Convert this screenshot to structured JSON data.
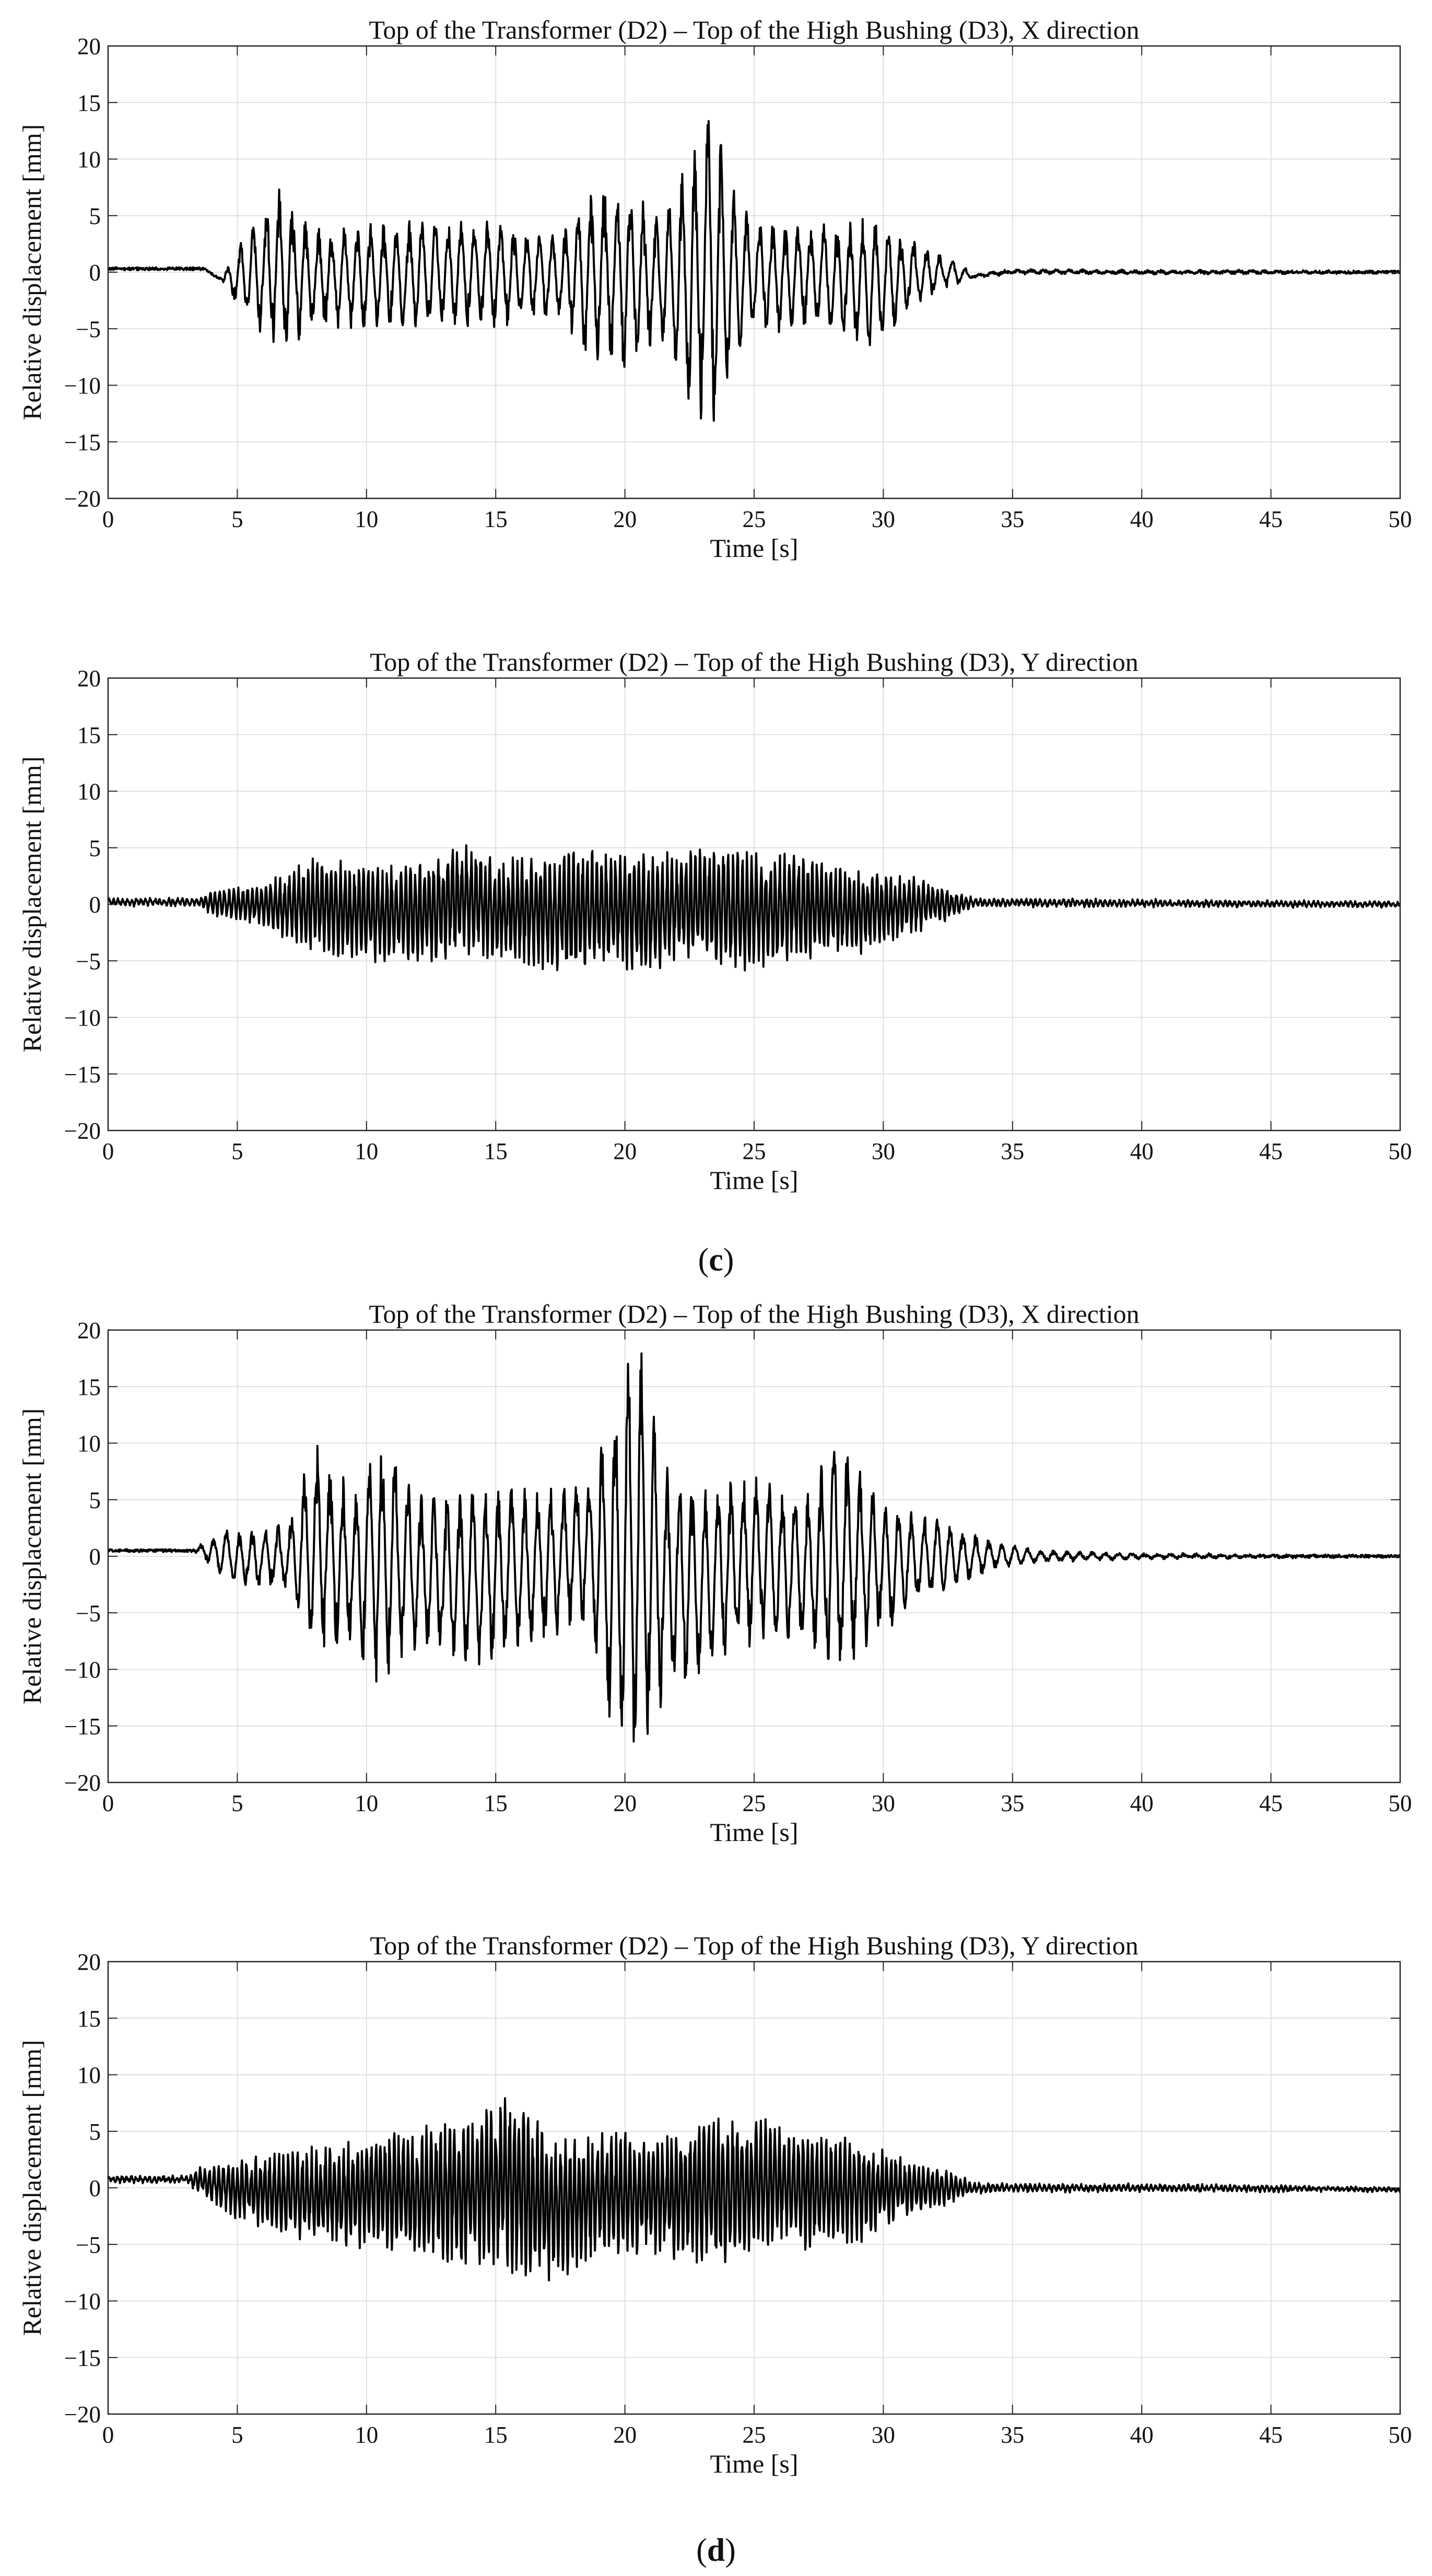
{
  "panel_labels": [
    "(c)",
    "(d)"
  ],
  "chart_data": [
    {
      "type": "line",
      "title": "Top of the Transformer (D2) – Top of the High Bushing (D3), X direction",
      "xlabel": "Time [s]",
      "ylabel": "Relative displacement [mm]",
      "xlim": [
        0,
        50
      ],
      "ylim": [
        -20,
        20
      ],
      "xticks": [
        0,
        5,
        10,
        15,
        20,
        25,
        30,
        35,
        40,
        45,
        50
      ],
      "yticks": [
        -20,
        -15,
        -10,
        -5,
        0,
        5,
        10,
        15,
        20
      ],
      "grid": true,
      "line_color": "#000000",
      "series": [
        {
          "x": [
            0,
            3.7,
            4.4,
            5.0,
            6.7,
            8.0,
            10.0,
            12.0,
            15.0,
            17.5,
            18.5,
            20.0,
            21.3,
            22.5,
            23.4,
            24.3,
            25.0,
            26.5,
            28.0,
            29.5,
            31.5,
            32.5,
            33.5,
            35.0,
            40.0,
            45.0,
            50.0
          ],
          "y": [
            0.3,
            0.3,
            -0.7,
            2.6,
            7.5,
            4.0,
            4.3,
            4.6,
            4.8,
            3.5,
            7.3,
            8.0,
            5.0,
            10.2,
            15.2,
            6.8,
            5.0,
            4.6,
            4.6,
            5.0,
            2.5,
            1.4,
            -0.2,
            0.2,
            0.1,
            0.1,
            0.0
          ],
          "envelope_low": [
            0.3,
            0.3,
            -0.7,
            -3.5,
            -7.5,
            -5.0,
            -5.0,
            -5.0,
            -5.0,
            -4.0,
            -7.8,
            -8.8,
            -6.0,
            -12.0,
            -15.4,
            -7.5,
            -6.0,
            -5.0,
            -5.5,
            -7.0,
            -2.8,
            -1.4,
            -0.5,
            -0.1,
            -0.1,
            -0.1,
            0.0
          ],
          "period": 0.5
        }
      ]
    },
    {
      "type": "line",
      "title": "Top of the Transformer (D2) – Top of the High Bushing (D3), Y direction",
      "xlabel": "Time [s]",
      "ylabel": "Relative displacement [mm]",
      "xlim": [
        0,
        50
      ],
      "ylim": [
        -20,
        20
      ],
      "xticks": [
        0,
        5,
        10,
        15,
        20,
        25,
        30,
        35,
        40,
        45,
        50
      ],
      "yticks": [
        -20,
        -15,
        -10,
        -5,
        0,
        5,
        10,
        15,
        20
      ],
      "grid": true,
      "line_color": "#000000",
      "series": [
        {
          "x": [
            0,
            3.5,
            4.2,
            5.0,
            6.0,
            8.0,
            10.0,
            12.0,
            13.8,
            15.0,
            17.5,
            19.0,
            21.0,
            22.0,
            25.0,
            27.0,
            29.0,
            31.0,
            32.5,
            33.5,
            35.0,
            40.0,
            45.0,
            50.0
          ],
          "y": [
            0.5,
            0.5,
            1.5,
            1.5,
            1.8,
            4.3,
            3.5,
            4.0,
            5.8,
            4.0,
            4.8,
            5.0,
            4.5,
            5.3,
            4.8,
            4.5,
            3.2,
            2.6,
            1.5,
            0.5,
            0.5,
            0.4,
            0.3,
            0.2
          ],
          "envelope_low": [
            -0.1,
            -0.1,
            -1.2,
            -1.5,
            -2.0,
            -4.5,
            -5.2,
            -5.3,
            -4.8,
            -5.0,
            -6.3,
            -5.5,
            -6.4,
            -5.0,
            -6.0,
            -5.0,
            -4.5,
            -2.8,
            -1.5,
            -0.2,
            -0.2,
            -0.2,
            -0.2,
            -0.2
          ],
          "period": 0.18
        }
      ]
    },
    {
      "type": "line",
      "title": "Top of the Transformer (D2) – Top of the High Bushing (D3), X direction",
      "xlabel": "Time [s]",
      "ylabel": "Relative displacement [mm]",
      "xlim": [
        0,
        50
      ],
      "ylim": [
        -20,
        20
      ],
      "xticks": [
        0,
        5,
        10,
        15,
        20,
        25,
        30,
        35,
        40,
        45,
        50
      ],
      "yticks": [
        -20,
        -15,
        -10,
        -5,
        0,
        5,
        10,
        15,
        20
      ],
      "grid": true,
      "line_color": "#000000",
      "series": [
        {
          "x": [
            0,
            3.3,
            4.5,
            5.0,
            7.0,
            8.0,
            9.5,
            10.3,
            12.0,
            14.0,
            16.5,
            18.5,
            19.5,
            20.5,
            21.5,
            23.0,
            25.0,
            27.0,
            28.0,
            30.0,
            32.0,
            34.0,
            36.0,
            40.0,
            45.0,
            50.0
          ],
          "y": [
            0.5,
            0.5,
            2.5,
            2.2,
            3.0,
            10.5,
            6.0,
            12.0,
            6.0,
            6.0,
            6.0,
            7.5,
            14.0,
            19.5,
            9.0,
            6.0,
            7.5,
            5.2,
            11.2,
            5.0,
            3.5,
            1.5,
            0.5,
            0.2,
            0.1,
            0.0
          ],
          "envelope_low": [
            0.5,
            0.5,
            -2.0,
            -2.8,
            -3.0,
            -9.0,
            -8.0,
            -12.0,
            -8.0,
            -10.5,
            -8.0,
            -6.0,
            -17.0,
            -19.5,
            -13.0,
            -10.5,
            -8.0,
            -8.0,
            -11.5,
            -7.0,
            -3.5,
            -1.5,
            -0.5,
            -0.2,
            -0.1,
            0.0
          ],
          "period": 0.5
        }
      ]
    },
    {
      "type": "line",
      "title": "Top of the Transformer (D2) – Top of the High Bushing (D3), Y direction",
      "xlabel": "Time [s]",
      "ylabel": "Relative displacement [mm]",
      "xlim": [
        0,
        50
      ],
      "ylim": [
        -20,
        20
      ],
      "xticks": [
        0,
        5,
        10,
        15,
        20,
        25,
        30,
        35,
        40,
        45,
        50
      ],
      "yticks": [
        -20,
        -15,
        -10,
        -5,
        0,
        5,
        10,
        15,
        20
      ],
      "grid": true,
      "line_color": "#000000",
      "series": [
        {
          "x": [
            0,
            3.0,
            3.5,
            5.0,
            7.0,
            9.0,
            10.5,
            12.5,
            15.5,
            17.0,
            19.0,
            21.0,
            23.5,
            25.5,
            27.0,
            29.0,
            31.0,
            32.5,
            33.5,
            35.0,
            40.0,
            45.0,
            50.0
          ],
          "y": [
            1.0,
            1.0,
            1.8,
            2.5,
            3.5,
            4.0,
            5.5,
            5.5,
            8.7,
            5.0,
            5.3,
            4.5,
            6.5,
            6.5,
            5.0,
            4.5,
            2.5,
            1.5,
            0.5,
            0.3,
            0.3,
            0.2,
            0.0
          ],
          "envelope_low": [
            0.5,
            0.5,
            -0.5,
            -2.8,
            -4.5,
            -5.5,
            -5.5,
            -6.5,
            -7.8,
            -8.5,
            -6.5,
            -6.0,
            -7.5,
            -5.5,
            -5.5,
            -5.0,
            -2.5,
            -1.5,
            -0.5,
            -0.3,
            -0.3,
            -0.3,
            -0.3
          ],
          "period": 0.18
        }
      ]
    }
  ]
}
